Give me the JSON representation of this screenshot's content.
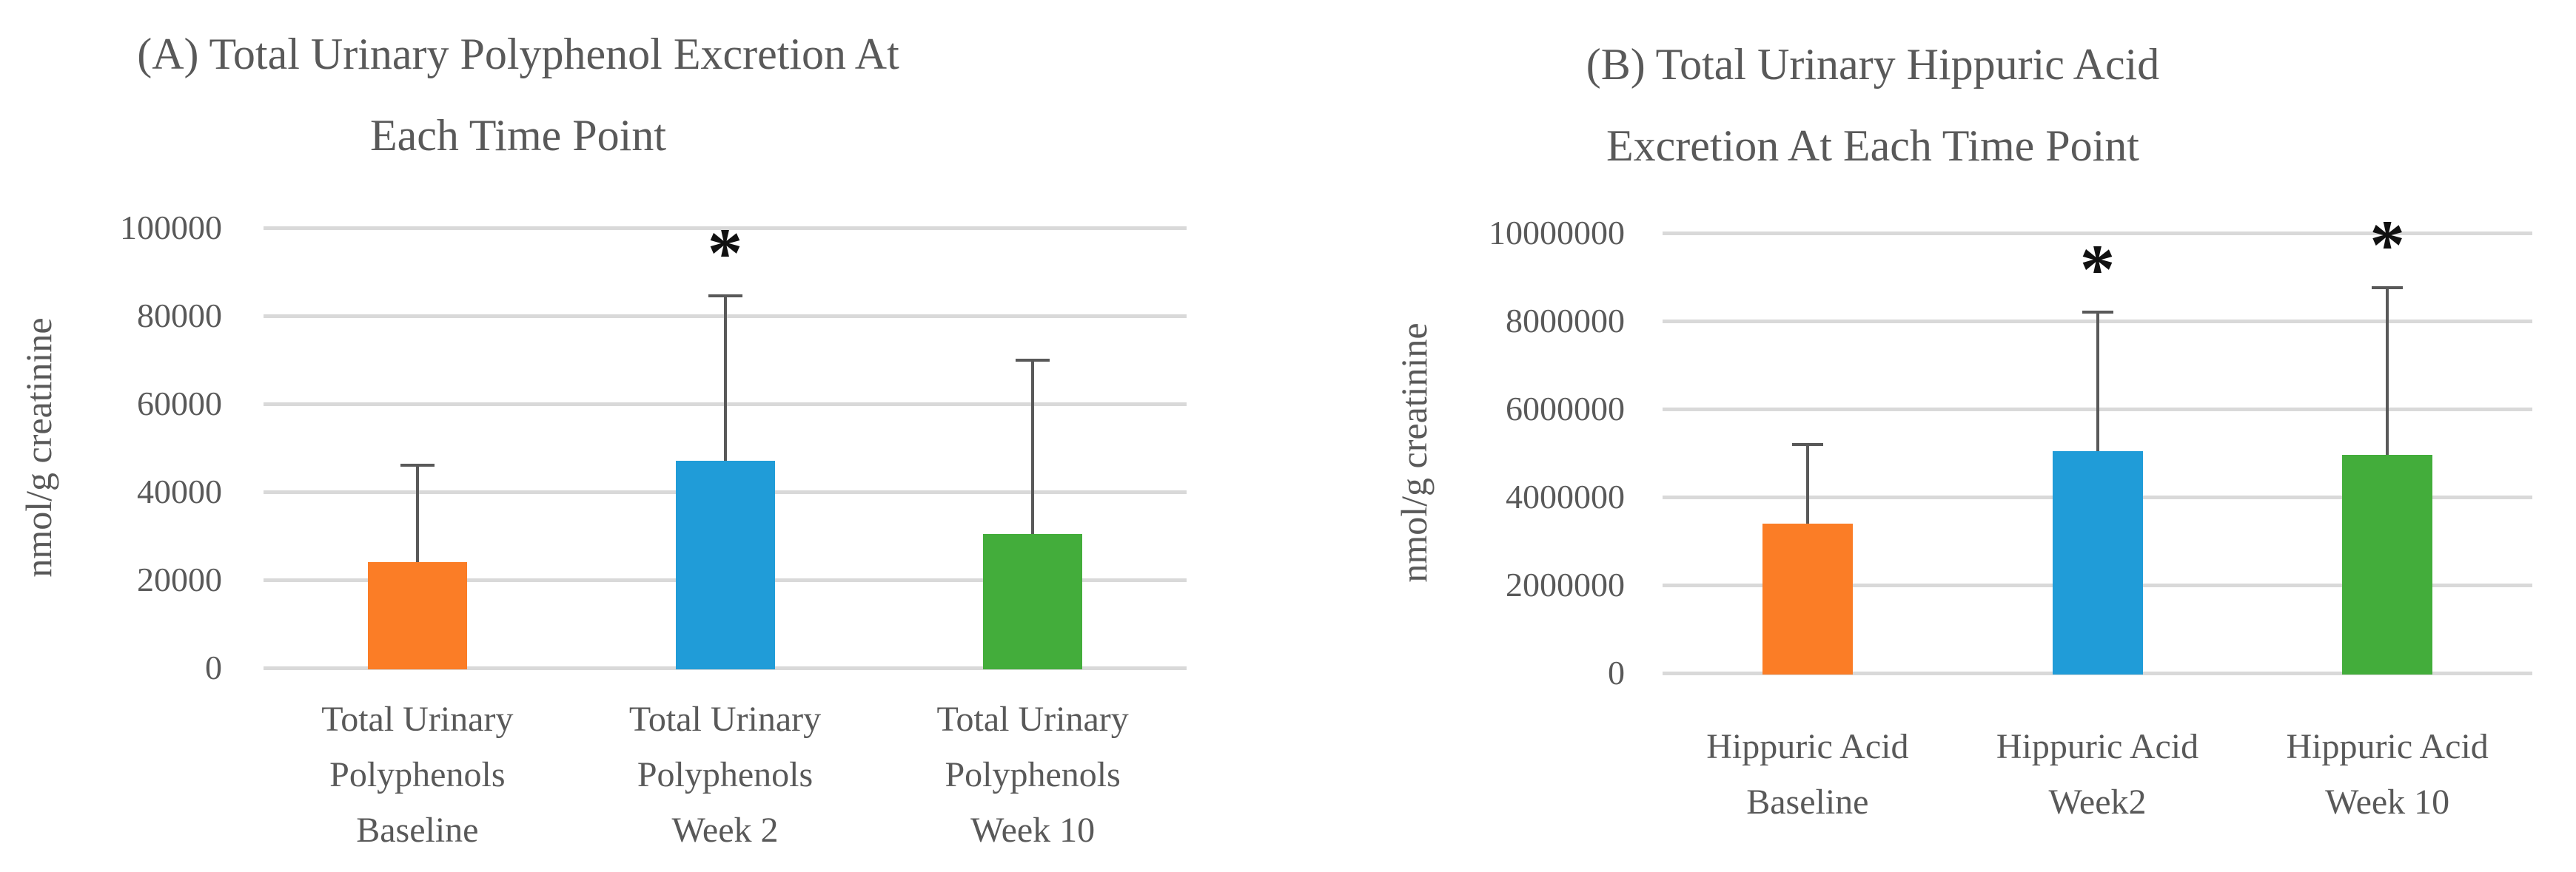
{
  "figure": {
    "background": "#FFFFFF",
    "text_color": "#595959",
    "gridline_color": "#D9D9D9",
    "error_bar_color": "#595959",
    "significance_marker": "*",
    "bar_colors": [
      "#FB7D26",
      "#209CD8",
      "#43AD3B"
    ]
  },
  "chart_data": [
    {
      "id": "a",
      "type": "bar",
      "title_lines": [
        "(A) Total Urinary Polyphenol Excretion At",
        "Each Time Point"
      ],
      "ylabel": "nmol/g creatinine",
      "ylim": [
        0,
        100000
      ],
      "ytick_step": 20000,
      "yticks": [
        "0",
        "20000",
        "40000",
        "60000",
        "80000",
        "100000"
      ],
      "grid": true,
      "legend": "none",
      "categories": [
        [
          "Total Urinary",
          "Polyphenols",
          "Baseline"
        ],
        [
          "Total Urinary",
          "Polyphenols",
          "Week 2"
        ],
        [
          "Total Urinary",
          "Polyphenols",
          "Week 10"
        ]
      ],
      "values": [
        24000,
        47000,
        30500
      ],
      "error_up": [
        22000,
        37500,
        39500
      ],
      "significant": [
        false,
        true,
        false
      ]
    },
    {
      "id": "b",
      "type": "bar",
      "title_lines": [
        "(B) Total Urinary Hippuric Acid",
        "Excretion At Each Time Point"
      ],
      "ylabel": "nmol/g creatinine",
      "ylim": [
        0,
        10000000
      ],
      "ytick_step": 2000000,
      "yticks": [
        "0",
        "2000000",
        "4000000",
        "6000000",
        "8000000",
        "10000000"
      ],
      "grid": true,
      "legend": "none",
      "categories": [
        [
          "Hippuric Acid",
          "Baseline"
        ],
        [
          "Hippuric Acid",
          "Week2"
        ],
        [
          "Hippuric Acid",
          "Week 10"
        ]
      ],
      "values": [
        3400000,
        5050000,
        4950000
      ],
      "error_up": [
        1800000,
        3150000,
        3800000
      ],
      "significant": [
        false,
        true,
        true
      ]
    }
  ]
}
